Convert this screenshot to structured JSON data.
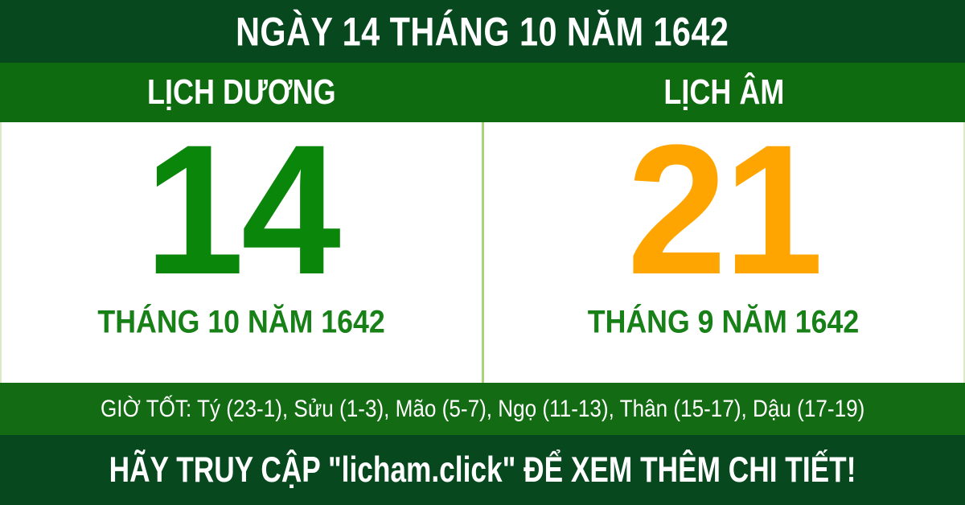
{
  "header": {
    "title": "NGÀY 14 THÁNG 10 NĂM 1642"
  },
  "calendar": {
    "solar": {
      "label": "LỊCH DƯƠNG",
      "day": "14",
      "month_year": "THÁNG 10 NĂM 1642"
    },
    "lunar": {
      "label": "LỊCH ÂM",
      "day": "21",
      "month_year": "THÁNG 9 NĂM 1642"
    }
  },
  "good_hours": {
    "text": "GIỜ TỐT: Tý (23-1), Sửu (1-3), Mão (5-7), Ngọ (11-13), Thân (15-17), Dậu (17-19)"
  },
  "footer": {
    "text": "HÃY TRUY CẬP \"licham.click\" ĐỂ XEM THÊM CHI TIẾT!"
  },
  "colors": {
    "dark_green": "#07481f",
    "band_green": "#0e6b10",
    "hours_green": "#136c13",
    "solar_green": "#0a860a",
    "month_green": "#178017",
    "lunar_orange": "#ffa502",
    "divider_green": "#a9d378",
    "white": "#ffffff"
  }
}
